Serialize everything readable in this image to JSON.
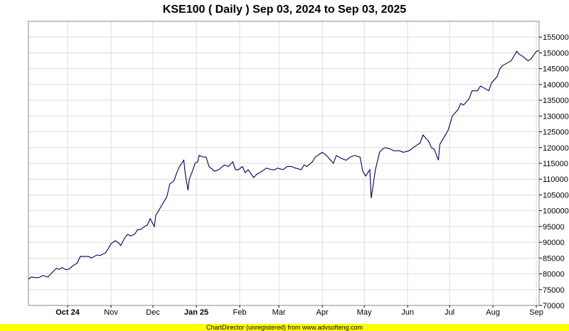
{
  "chart_data": {
    "type": "line",
    "title": "KSE100 ( Daily ) Sep 03, 2024 to Sep 03, 2025",
    "xlabel": "",
    "ylabel": "",
    "ylim": [
      70000,
      160000
    ],
    "y_ticks": [
      70000,
      75000,
      80000,
      85000,
      90000,
      95000,
      100000,
      105000,
      110000,
      115000,
      120000,
      125000,
      130000,
      135000,
      140000,
      145000,
      150000,
      155000
    ],
    "x_range": [
      "2024-09-03",
      "2025-09-03"
    ],
    "x_ticks": [
      {
        "date": "2024-10-01",
        "label": "Oct 24",
        "bold": true
      },
      {
        "date": "2024-11-01",
        "label": "Nov",
        "bold": false
      },
      {
        "date": "2024-12-01",
        "label": "Dec",
        "bold": false
      },
      {
        "date": "2025-01-01",
        "label": "Jan 25",
        "bold": true
      },
      {
        "date": "2025-02-01",
        "label": "Feb",
        "bold": false
      },
      {
        "date": "2025-03-01",
        "label": "Mar",
        "bold": false
      },
      {
        "date": "2025-04-01",
        "label": "Apr",
        "bold": false
      },
      {
        "date": "2025-05-01",
        "label": "May",
        "bold": false
      },
      {
        "date": "2025-06-01",
        "label": "Jun",
        "bold": false
      },
      {
        "date": "2025-07-01",
        "label": "Jul",
        "bold": false
      },
      {
        "date": "2025-08-01",
        "label": "Aug",
        "bold": false
      },
      {
        "date": "2025-09-01",
        "label": "Sep",
        "bold": false
      }
    ],
    "grid": true,
    "line_color": "#000060",
    "series": [
      {
        "name": "",
        "points": [
          [
            "2024-09-03",
            78300
          ],
          [
            "2024-09-05",
            79000
          ],
          [
            "2024-09-09",
            78800
          ],
          [
            "2024-09-11",
            78900
          ],
          [
            "2024-09-13",
            79500
          ],
          [
            "2024-09-17",
            79000
          ],
          [
            "2024-09-19",
            80000
          ],
          [
            "2024-09-23",
            81800
          ],
          [
            "2024-09-25",
            81400
          ],
          [
            "2024-09-27",
            82000
          ],
          [
            "2024-09-30",
            81300
          ],
          [
            "2024-10-02",
            81500
          ],
          [
            "2024-10-04",
            82300
          ],
          [
            "2024-10-08",
            83500
          ],
          [
            "2024-10-10",
            85500
          ],
          [
            "2024-10-14",
            85500
          ],
          [
            "2024-10-16",
            85500
          ],
          [
            "2024-10-18",
            85000
          ],
          [
            "2024-10-22",
            86000
          ],
          [
            "2024-10-24",
            85800
          ],
          [
            "2024-10-28",
            86600
          ],
          [
            "2024-10-30",
            88000
          ],
          [
            "2024-11-01",
            89500
          ],
          [
            "2024-11-04",
            90500
          ],
          [
            "2024-11-06",
            90000
          ],
          [
            "2024-11-08",
            89000
          ],
          [
            "2024-11-11",
            91500
          ],
          [
            "2024-11-13",
            92500
          ],
          [
            "2024-11-15",
            92000
          ],
          [
            "2024-11-18",
            92600
          ],
          [
            "2024-11-20",
            94000
          ],
          [
            "2024-11-22",
            94000
          ],
          [
            "2024-11-25",
            95000
          ],
          [
            "2024-11-27",
            95500
          ],
          [
            "2024-11-29",
            97500
          ],
          [
            "2024-12-02",
            95000
          ],
          [
            "2024-12-03",
            98500
          ],
          [
            "2024-12-05",
            100000
          ],
          [
            "2024-12-09",
            103000
          ],
          [
            "2024-12-11",
            104500
          ],
          [
            "2024-12-13",
            108500
          ],
          [
            "2024-12-16",
            109500
          ],
          [
            "2024-12-18",
            112000
          ],
          [
            "2024-12-20",
            114000
          ],
          [
            "2024-12-23",
            116000
          ],
          [
            "2024-12-24",
            112000
          ],
          [
            "2024-12-26",
            106500
          ],
          [
            "2024-12-27",
            110000
          ],
          [
            "2024-12-30",
            113500
          ],
          [
            "2024-12-31",
            115000
          ],
          [
            "2025-01-02",
            115500
          ],
          [
            "2025-01-03",
            117500
          ],
          [
            "2025-01-06",
            117000
          ],
          [
            "2025-01-08",
            117000
          ],
          [
            "2025-01-10",
            114000
          ],
          [
            "2025-01-14",
            112500
          ],
          [
            "2025-01-17",
            113000
          ],
          [
            "2025-01-21",
            114500
          ],
          [
            "2025-01-24",
            114000
          ],
          [
            "2025-01-27",
            115500
          ],
          [
            "2025-01-29",
            113000
          ],
          [
            "2025-01-31",
            113000
          ],
          [
            "2025-02-03",
            114000
          ],
          [
            "2025-02-05",
            112000
          ],
          [
            "2025-02-07",
            113000
          ],
          [
            "2025-02-11",
            110500
          ],
          [
            "2025-02-13",
            111500
          ],
          [
            "2025-02-17",
            112500
          ],
          [
            "2025-02-20",
            113500
          ],
          [
            "2025-02-24",
            113000
          ],
          [
            "2025-02-26",
            113000
          ],
          [
            "2025-02-28",
            113500
          ],
          [
            "2025-03-04",
            113000
          ],
          [
            "2025-03-07",
            114000
          ],
          [
            "2025-03-10",
            114000
          ],
          [
            "2025-03-13",
            113500
          ],
          [
            "2025-03-17",
            113000
          ],
          [
            "2025-03-19",
            114500
          ],
          [
            "2025-03-21",
            114000
          ],
          [
            "2025-03-25",
            115500
          ],
          [
            "2025-03-27",
            117000
          ],
          [
            "2025-04-01",
            118500
          ],
          [
            "2025-04-04",
            117500
          ],
          [
            "2025-04-07",
            116000
          ],
          [
            "2025-04-09",
            115000
          ],
          [
            "2025-04-11",
            117500
          ],
          [
            "2025-04-15",
            116500
          ],
          [
            "2025-04-18",
            116000
          ],
          [
            "2025-04-21",
            117000
          ],
          [
            "2025-04-24",
            117500
          ],
          [
            "2025-04-28",
            117000
          ],
          [
            "2025-04-30",
            112500
          ],
          [
            "2025-05-02",
            111000
          ],
          [
            "2025-05-05",
            113000
          ],
          [
            "2025-05-06",
            104000
          ],
          [
            "2025-05-07",
            107000
          ],
          [
            "2025-05-09",
            113000
          ],
          [
            "2025-05-12",
            118500
          ],
          [
            "2025-05-14",
            119500
          ],
          [
            "2025-05-16",
            120000
          ],
          [
            "2025-05-20",
            119500
          ],
          [
            "2025-05-22",
            119000
          ],
          [
            "2025-05-26",
            119000
          ],
          [
            "2025-05-29",
            118500
          ],
          [
            "2025-06-02",
            119000
          ],
          [
            "2025-06-05",
            120000
          ],
          [
            "2025-06-10",
            121500
          ],
          [
            "2025-06-12",
            124000
          ],
          [
            "2025-06-16",
            122000
          ],
          [
            "2025-06-18",
            120000
          ],
          [
            "2025-06-20",
            119500
          ],
          [
            "2025-06-23",
            116000
          ],
          [
            "2025-06-24",
            121000
          ],
          [
            "2025-06-26",
            122500
          ],
          [
            "2025-06-30",
            125500
          ],
          [
            "2025-07-03",
            130000
          ],
          [
            "2025-07-07",
            132000
          ],
          [
            "2025-07-09",
            134000
          ],
          [
            "2025-07-11",
            133500
          ],
          [
            "2025-07-15",
            135500
          ],
          [
            "2025-07-17",
            138000
          ],
          [
            "2025-07-21",
            138000
          ],
          [
            "2025-07-23",
            139500
          ],
          [
            "2025-07-25",
            139000
          ],
          [
            "2025-07-29",
            138000
          ],
          [
            "2025-07-31",
            140500
          ],
          [
            "2025-08-04",
            142500
          ],
          [
            "2025-08-06",
            145000
          ],
          [
            "2025-08-08",
            146000
          ],
          [
            "2025-08-12",
            147000
          ],
          [
            "2025-08-14",
            147500
          ],
          [
            "2025-08-18",
            150500
          ],
          [
            "2025-08-20",
            149500
          ],
          [
            "2025-08-22",
            149000
          ],
          [
            "2025-08-26",
            147500
          ],
          [
            "2025-08-28",
            148000
          ],
          [
            "2025-09-01",
            150500
          ],
          [
            "2025-09-03",
            150700
          ]
        ]
      }
    ]
  },
  "footer": {
    "text": "ChartDirector (unregistered) from www.advsofteng.com",
    "background": "#ffff00"
  },
  "colors": {
    "grid": "#dddddd",
    "plot_border": "#888888",
    "line": "#000060"
  }
}
